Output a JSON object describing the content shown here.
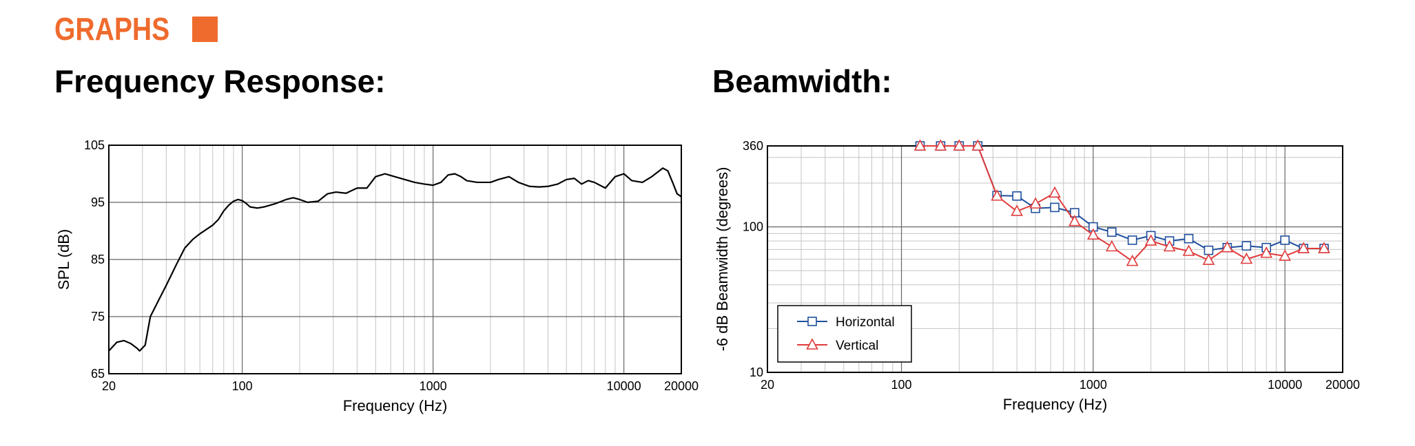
{
  "header": {
    "title": "GRAPHS"
  },
  "chart_data": [
    {
      "type": "line",
      "title": "Frequency Response:",
      "x_label": "Frequency (Hz)",
      "y_label": "SPL (dB)",
      "xscale": "log",
      "xlim": [
        20,
        20000
      ],
      "xticks": [
        20,
        100,
        1000,
        10000,
        20000
      ],
      "ylim": [
        65,
        105
      ],
      "yticks": [
        65,
        75,
        85,
        95,
        105
      ],
      "grid": true,
      "minor_grid": true,
      "color": "#000000",
      "x": [
        20,
        22,
        24,
        26,
        28,
        29,
        31,
        33,
        36,
        40,
        45,
        50,
        55,
        60,
        70,
        75,
        80,
        85,
        90,
        95,
        100,
        105,
        110,
        120,
        130,
        150,
        170,
        185,
        200,
        220,
        250,
        280,
        310,
        350,
        400,
        450,
        500,
        560,
        630,
        710,
        800,
        900,
        1000,
        1100,
        1200,
        1300,
        1400,
        1500,
        1700,
        2000,
        2200,
        2500,
        2800,
        3200,
        3600,
        4000,
        4500,
        5000,
        5500,
        6000,
        6500,
        7000,
        8000,
        9000,
        10000,
        11000,
        12500,
        14000,
        16000,
        17000,
        18000,
        19000,
        20000
      ],
      "values": [
        69,
        70.5,
        70.8,
        70.3,
        69.5,
        69,
        70,
        75,
        77.5,
        80.5,
        84,
        87,
        88.5,
        89.5,
        91,
        92,
        93.5,
        94.5,
        95.2,
        95.5,
        95.3,
        94.8,
        94.2,
        94,
        94.2,
        94.8,
        95.5,
        95.8,
        95.5,
        95,
        95.2,
        96.5,
        96.8,
        96.6,
        97.5,
        97.5,
        99.5,
        100,
        99.5,
        99,
        98.5,
        98.2,
        98,
        98.5,
        99.8,
        100,
        99.5,
        98.8,
        98.5,
        98.5,
        99,
        99.5,
        98.5,
        97.8,
        97.7,
        97.8,
        98.2,
        99,
        99.2,
        98.2,
        98.8,
        98.5,
        97.5,
        99.5,
        100,
        98.8,
        98.5,
        99.5,
        101,
        100.5,
        98.5,
        96.5,
        96
      ]
    },
    {
      "type": "line",
      "title": "Beamwidth:",
      "x_label": "Frequency (Hz)",
      "y_label": "-6 dB Beamwidth (degrees)",
      "xscale": "log",
      "yscale": "log",
      "xlim": [
        20,
        20000
      ],
      "xticks": [
        20,
        100,
        1000,
        10000,
        20000
      ],
      "ylim": [
        10,
        360
      ],
      "yticks": [
        10,
        100,
        360
      ],
      "grid": true,
      "minor_grid": true,
      "legend": "lower left",
      "x": [
        125,
        160,
        200,
        250,
        315,
        400,
        500,
        630,
        800,
        1000,
        1250,
        1600,
        2000,
        2500,
        3150,
        4000,
        5000,
        6300,
        8000,
        10000,
        12500,
        16000
      ],
      "series": [
        {
          "name": "Horizontal",
          "color": "#1f4e9c",
          "marker": "square",
          "values": [
            360,
            360,
            360,
            360,
            164,
            163,
            134,
            136,
            125,
            100,
            92,
            81,
            87,
            80,
            83,
            69,
            72,
            74,
            72,
            81,
            71,
            71
          ]
        },
        {
          "name": "Vertical",
          "color": "#e03a3a",
          "marker": "triangle",
          "values": [
            360,
            360,
            360,
            360,
            163,
            128,
            144,
            171,
            109,
            88,
            73,
            58,
            80,
            73,
            68,
            59,
            72,
            60,
            66,
            63,
            71,
            71
          ]
        }
      ]
    }
  ]
}
